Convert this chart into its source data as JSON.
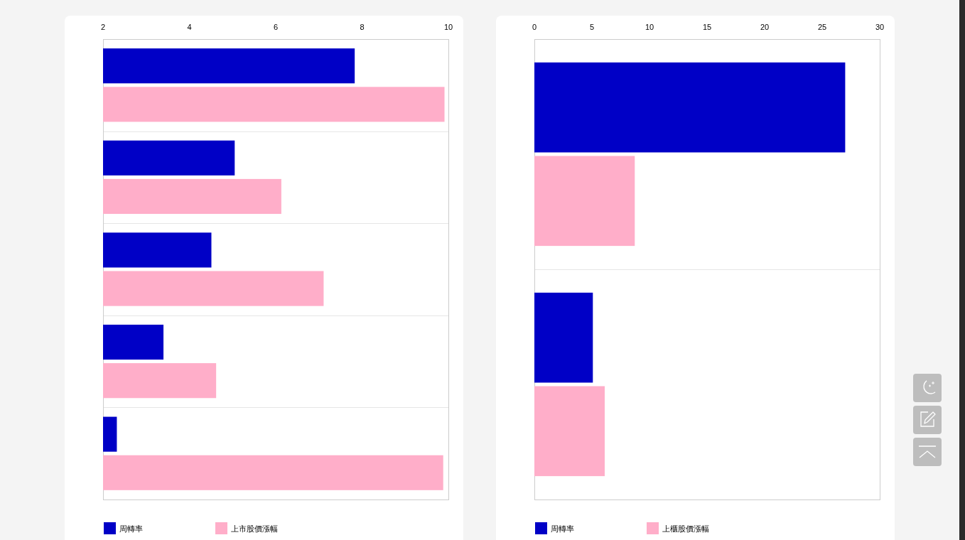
{
  "chart_data": [
    {
      "type": "bar",
      "orientation": "horizontal",
      "categories": [
        null,
        null,
        null,
        null,
        null
      ],
      "series": [
        {
          "name": "周轉率",
          "color": "#0000c6",
          "values": [
            7.83,
            5.05,
            4.51,
            3.4,
            2.32
          ]
        },
        {
          "name": "上市股價漲幅",
          "color": "#ffaec9",
          "values": [
            9.91,
            6.13,
            7.11,
            4.62,
            9.88
          ]
        }
      ],
      "xlim": [
        2,
        10
      ],
      "xticks": [
        2,
        4,
        6,
        8,
        10
      ],
      "grid": "y",
      "legend": "bottom"
    },
    {
      "type": "bar",
      "orientation": "horizontal",
      "categories": [
        null,
        null
      ],
      "series": [
        {
          "name": "周轉率",
          "color": "#0000c6",
          "values": [
            27.0,
            5.08
          ]
        },
        {
          "name": "上櫃股價漲幅",
          "color": "#ffaec9",
          "values": [
            8.72,
            6.11
          ]
        }
      ],
      "xlim": [
        0,
        30
      ],
      "xticks": [
        0,
        5,
        10,
        15,
        20,
        25,
        30
      ],
      "grid": "y",
      "legend": "bottom"
    }
  ]
}
